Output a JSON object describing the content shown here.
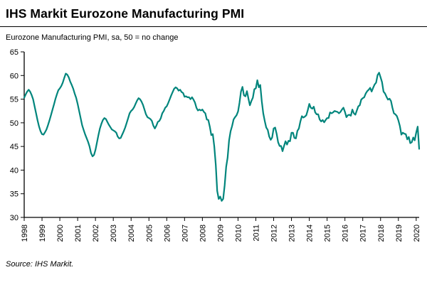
{
  "title": "IHS Markit Eurozone Manufacturing PMI",
  "subtitle": "Eurozone Manufacturing PMI, sa, 50 = no change",
  "source": "Source: IHS Markit.",
  "colors": {
    "line": "#00857C",
    "axis": "#000000",
    "text": "#000000",
    "background": "#FFFFFF"
  },
  "chart_data": {
    "type": "line",
    "title": "IHS Markit Eurozone Manufacturing PMI",
    "subtitle": "Eurozone Manufacturing PMI, sa, 50 = no change",
    "frequency": "monthly",
    "x_start": "1998-01",
    "x_end": "2020-03",
    "x_tick_labels": [
      "1998",
      "1999",
      "2000",
      "2001",
      "2002",
      "2003",
      "2004",
      "2005",
      "2006",
      "2007",
      "2008",
      "2009",
      "2010",
      "2011",
      "2012",
      "2013",
      "2014",
      "2015",
      "2016",
      "2017",
      "2018",
      "2019",
      "2020"
    ],
    "y_ticks": [
      30,
      35,
      40,
      45,
      50,
      55,
      60,
      65
    ],
    "ylim": [
      30,
      65
    ],
    "grid": false,
    "legend": "none",
    "series": [
      {
        "name": "Eurozone Manufacturing PMI (sa)",
        "values": [
          55.3,
          56.0,
          56.6,
          57.0,
          56.6,
          55.9,
          55.0,
          53.5,
          52.0,
          50.5,
          49.2,
          48.2,
          47.6,
          47.5,
          48.0,
          48.6,
          49.5,
          50.5,
          51.6,
          52.7,
          53.8,
          55.0,
          56.0,
          56.9,
          57.3,
          57.8,
          58.5,
          59.5,
          60.4,
          60.2,
          59.6,
          58.7,
          58.0,
          57.2,
          56.2,
          55.3,
          54.0,
          52.5,
          51.0,
          49.5,
          48.5,
          47.6,
          46.8,
          46.0,
          45.0,
          43.6,
          42.9,
          43.2,
          44.3,
          45.8,
          47.4,
          48.8,
          49.8,
          50.6,
          51.0,
          50.8,
          50.2,
          49.6,
          49.1,
          48.6,
          48.4,
          48.2,
          47.9,
          47.1,
          46.7,
          46.8,
          47.5,
          48.2,
          49.0,
          50.0,
          51.0,
          52.0,
          52.5,
          52.8,
          53.3,
          54.0,
          54.7,
          55.2,
          55.0,
          54.5,
          53.8,
          52.8,
          51.8,
          51.2,
          51.0,
          50.8,
          50.4,
          49.4,
          48.8,
          49.4,
          50.2,
          50.4,
          51.0,
          52.0,
          52.5,
          53.2,
          53.5,
          54.2,
          55.0,
          55.8,
          56.5,
          57.2,
          57.5,
          57.3,
          56.8,
          57.0,
          56.5,
          56.3,
          55.5,
          55.6,
          55.4,
          55.4,
          55.0,
          55.4,
          54.9,
          54.3,
          53.2,
          52.6,
          52.8,
          52.6,
          52.8,
          52.3,
          52.0,
          50.7,
          50.6,
          49.2,
          47.4,
          47.6,
          45.0,
          41.1,
          35.6,
          33.9,
          34.4,
          33.5,
          33.9,
          36.8,
          40.7,
          42.6,
          46.3,
          48.2,
          49.3,
          50.7,
          51.2,
          51.6,
          52.4,
          54.2,
          56.6,
          57.6,
          55.8,
          55.6,
          56.7,
          55.1,
          53.7,
          54.6,
          55.3,
          57.1,
          57.3,
          59.0,
          57.5,
          58.0,
          54.6,
          52.0,
          50.4,
          49.0,
          48.5,
          47.1,
          46.4,
          46.9,
          48.8,
          49.0,
          47.7,
          45.9,
          45.1,
          45.1,
          44.0,
          45.1,
          46.1,
          45.4,
          46.2,
          46.1,
          47.9,
          47.9,
          46.8,
          46.7,
          48.3,
          48.8,
          50.3,
          51.4,
          51.1,
          51.3,
          51.6,
          52.7,
          54.0,
          53.2,
          53.0,
          53.4,
          52.2,
          51.8,
          51.8,
          50.7,
          50.3,
          50.6,
          50.1,
          50.6,
          51.0,
          51.0,
          52.2,
          52.0,
          52.2,
          52.5,
          52.4,
          52.3,
          52.0,
          52.3,
          52.8,
          53.2,
          52.3,
          51.2,
          51.6,
          51.7,
          51.5,
          52.8,
          52.0,
          51.7,
          52.6,
          53.5,
          53.7,
          54.9,
          55.2,
          55.4,
          56.2,
          56.7,
          57.0,
          57.4,
          56.6,
          57.4,
          58.1,
          58.5,
          60.1,
          60.6,
          59.6,
          58.6,
          56.6,
          56.2,
          55.5,
          54.9,
          55.1,
          54.6,
          53.2,
          52.0,
          51.8,
          51.4,
          50.5,
          49.3,
          47.5,
          47.9,
          47.7,
          47.6,
          46.5,
          47.0,
          45.7,
          45.9,
          46.9,
          46.3,
          47.9,
          49.2,
          44.5
        ]
      }
    ]
  }
}
